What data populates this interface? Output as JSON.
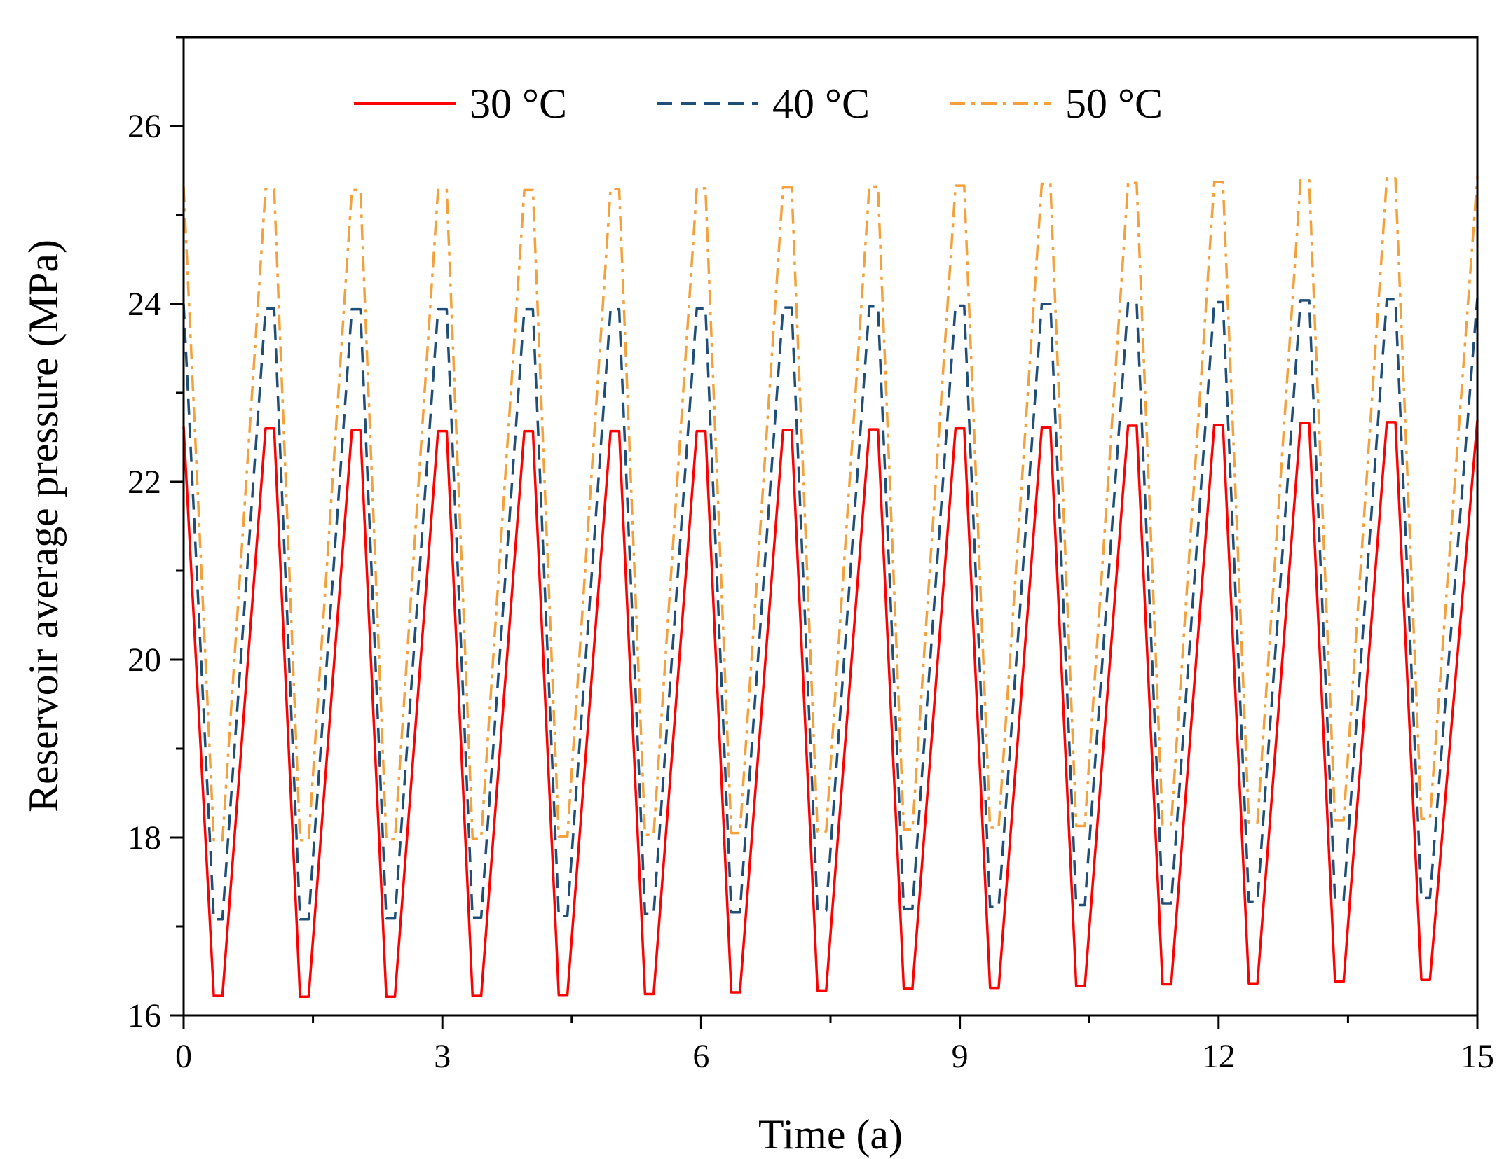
{
  "chart_data": {
    "type": "line",
    "title": "",
    "xlabel": "Time (a)",
    "ylabel": "Reservoir average pressure (MPa)",
    "xlim": [
      0,
      15
    ],
    "ylim": [
      16,
      27
    ],
    "xticks": [
      0,
      3,
      6,
      9,
      12,
      15
    ],
    "xtick_labels": [
      "0",
      "3",
      "6",
      "9",
      "12",
      "15"
    ],
    "xminor": [
      1.5,
      4.5,
      7.5,
      10.5,
      13.5
    ],
    "yticks": [
      16,
      18,
      20,
      22,
      24,
      26
    ],
    "ytick_labels": [
      "16",
      "18",
      "20",
      "22",
      "24",
      "26"
    ],
    "yminor": [
      17,
      19,
      21,
      23,
      25,
      27
    ],
    "grid": false,
    "legend_position": "top-center",
    "series": [
      {
        "name": "30 °C",
        "color": "#ff0000",
        "dash": "solid",
        "start": 22.62,
        "min_times": [
          0.35,
          0.45,
          1.35,
          1.45,
          2.35,
          2.45,
          3.35,
          3.45,
          4.35,
          4.45,
          5.35,
          5.45,
          6.35,
          6.45,
          7.35,
          7.45,
          8.35,
          8.45,
          9.35,
          9.45,
          10.35,
          10.45,
          11.35,
          11.45,
          12.35,
          12.45,
          13.35,
          13.45,
          14.35,
          14.45
        ],
        "minima": [
          16.22,
          16.21,
          16.21,
          16.22,
          16.23,
          16.24,
          16.26,
          16.28,
          16.3,
          16.31,
          16.33,
          16.35,
          16.36,
          16.38,
          16.4
        ],
        "max_times": [
          0.95,
          1.05,
          1.95,
          2.05,
          2.95,
          3.05,
          3.95,
          4.05,
          4.95,
          5.05,
          5.95,
          6.05,
          6.95,
          7.05,
          7.95,
          8.05,
          8.95,
          9.05,
          9.95,
          10.05,
          10.95,
          11.05,
          11.95,
          12.05,
          12.95,
          13.05,
          13.95,
          14.05,
          15.0
        ],
        "maxima": [
          22.6,
          22.58,
          22.57,
          22.57,
          22.57,
          22.57,
          22.58,
          22.59,
          22.6,
          22.61,
          22.63,
          22.64,
          22.66,
          22.67,
          22.69
        ]
      },
      {
        "name": "40 °C",
        "color": "#1f4e79",
        "dash": "dashed",
        "start": 24.0,
        "min_times": [
          0.35,
          0.45,
          1.35,
          1.45,
          2.35,
          2.45,
          3.35,
          3.45,
          4.35,
          4.45,
          5.35,
          5.45,
          6.35,
          6.45,
          7.35,
          7.45,
          8.35,
          8.45,
          9.35,
          9.45,
          10.35,
          10.45,
          11.35,
          11.45,
          12.35,
          12.45,
          13.35,
          13.45,
          14.35,
          14.45
        ],
        "minima": [
          17.08,
          17.08,
          17.09,
          17.1,
          17.12,
          17.14,
          17.16,
          17.18,
          17.2,
          17.22,
          17.24,
          17.26,
          17.28,
          17.3,
          17.32
        ],
        "max_times": [
          0.95,
          1.05,
          1.95,
          2.05,
          2.95,
          3.05,
          3.95,
          4.05,
          4.95,
          5.05,
          5.95,
          6.05,
          6.95,
          7.05,
          7.95,
          8.05,
          8.95,
          9.05,
          9.95,
          10.05,
          10.95,
          11.05,
          11.95,
          12.05,
          12.95,
          13.05,
          13.95,
          14.05,
          15.0
        ],
        "maxima": [
          23.95,
          23.94,
          23.94,
          23.94,
          23.94,
          23.95,
          23.96,
          23.97,
          23.98,
          24.0,
          24.01,
          24.02,
          24.04,
          24.05,
          24.07
        ]
      },
      {
        "name": "50 °C",
        "color": "#f4a13d",
        "dash": "dashdot",
        "start": 25.32,
        "min_times": [
          0.35,
          0.45,
          1.35,
          1.45,
          2.35,
          2.45,
          3.35,
          3.45,
          4.35,
          4.45,
          5.35,
          5.45,
          6.35,
          6.45,
          7.35,
          7.45,
          8.35,
          8.45,
          9.35,
          9.45,
          10.35,
          10.45,
          11.35,
          11.45,
          12.35,
          12.45,
          13.35,
          13.45,
          14.35,
          14.45
        ],
        "minima": [
          17.97,
          17.97,
          17.98,
          17.99,
          18.01,
          18.03,
          18.05,
          18.07,
          18.09,
          18.11,
          18.13,
          18.15,
          18.17,
          18.19,
          18.21
        ],
        "max_times": [
          0.95,
          1.05,
          1.95,
          2.05,
          2.95,
          3.05,
          3.95,
          4.05,
          4.95,
          5.05,
          5.95,
          6.05,
          6.95,
          7.05,
          7.95,
          8.05,
          8.95,
          9.05,
          9.95,
          10.05,
          10.95,
          11.05,
          11.95,
          12.05,
          12.95,
          13.05,
          13.95,
          14.05,
          15.0
        ],
        "maxima": [
          25.29,
          25.28,
          25.28,
          25.28,
          25.29,
          25.3,
          25.31,
          25.32,
          25.33,
          25.35,
          25.36,
          25.37,
          25.39,
          25.41,
          25.43
        ]
      }
    ]
  }
}
